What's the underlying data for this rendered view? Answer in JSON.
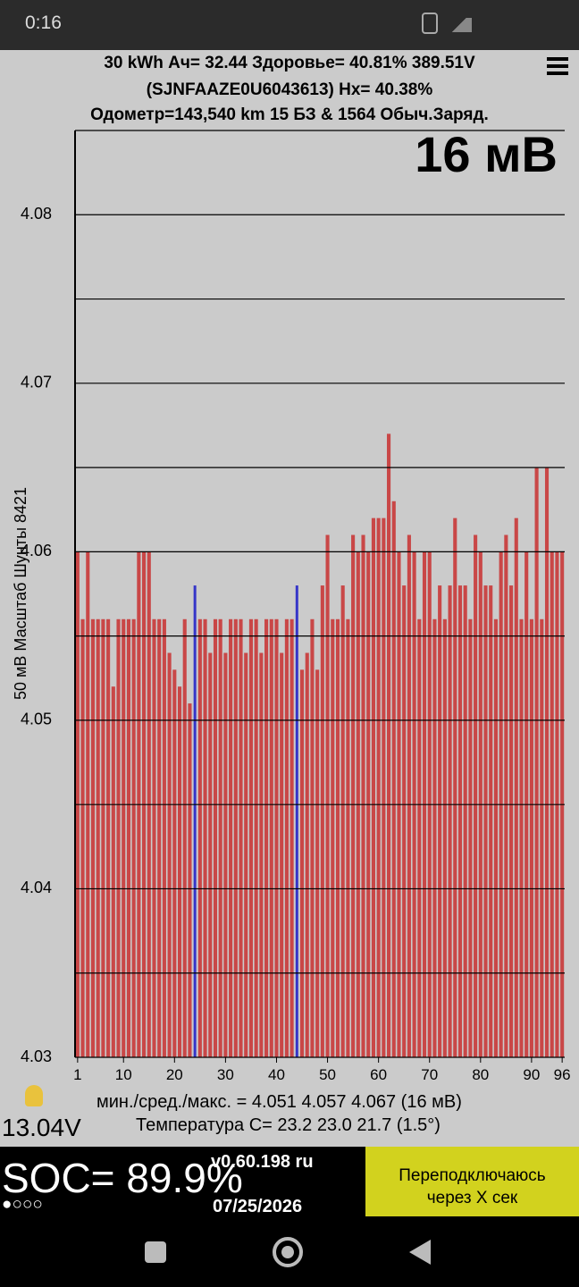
{
  "status_bar": {
    "time": "0:16"
  },
  "header": {
    "line1": "30 kWh  Ач= 32.44  Здоровье= 40.81%  389.51V",
    "line2": "(SJNFAAZE0U6043613)  Hx= 40.38%",
    "line3": "Одометр=143,540 km 15 БЗ & 1564 Обыч.Заряд."
  },
  "chart_data": {
    "type": "bar",
    "scale_label": "16 мВ",
    "y_label": "50 мВ Масштаб  Шунты 8421",
    "x": [
      1,
      2,
      3,
      4,
      5,
      6,
      7,
      8,
      9,
      10,
      11,
      12,
      13,
      14,
      15,
      16,
      17,
      18,
      19,
      20,
      21,
      22,
      23,
      24,
      25,
      26,
      27,
      28,
      29,
      30,
      31,
      32,
      33,
      34,
      35,
      36,
      37,
      38,
      39,
      40,
      41,
      42,
      43,
      44,
      45,
      46,
      47,
      48,
      49,
      50,
      51,
      52,
      53,
      54,
      55,
      56,
      57,
      58,
      59,
      60,
      61,
      62,
      63,
      64,
      65,
      66,
      67,
      68,
      69,
      70,
      71,
      72,
      73,
      74,
      75,
      76,
      77,
      78,
      79,
      80,
      81,
      82,
      83,
      84,
      85,
      86,
      87,
      88,
      89,
      90,
      91,
      92,
      93,
      94,
      95,
      96
    ],
    "values": [
      4.06,
      4.056,
      4.06,
      4.056,
      4.056,
      4.056,
      4.056,
      4.052,
      4.056,
      4.056,
      4.056,
      4.056,
      4.06,
      4.06,
      4.06,
      4.056,
      4.056,
      4.056,
      4.054,
      4.053,
      4.052,
      4.056,
      4.051,
      4.058,
      4.056,
      4.056,
      4.054,
      4.056,
      4.056,
      4.054,
      4.056,
      4.056,
      4.056,
      4.054,
      4.056,
      4.056,
      4.054,
      4.056,
      4.056,
      4.056,
      4.054,
      4.056,
      4.056,
      4.058,
      4.053,
      4.054,
      4.056,
      4.053,
      4.058,
      4.061,
      4.056,
      4.056,
      4.058,
      4.056,
      4.061,
      4.06,
      4.061,
      4.06,
      4.062,
      4.062,
      4.062,
      4.067,
      4.063,
      4.06,
      4.058,
      4.061,
      4.06,
      4.056,
      4.06,
      4.06,
      4.056,
      4.058,
      4.056,
      4.058,
      4.062,
      4.058,
      4.058,
      4.056,
      4.061,
      4.06,
      4.058,
      4.058,
      4.056,
      4.06,
      4.061,
      4.058,
      4.062,
      4.056,
      4.06,
      4.056,
      4.065,
      4.056,
      4.065,
      4.06,
      4.06,
      4.06
    ],
    "color": "#c94747",
    "highlight_color": "#3535c8",
    "highlight_indices": [
      23,
      43
    ],
    "xlim": [
      0.5,
      96.5
    ],
    "xticks": [
      1,
      10,
      20,
      30,
      40,
      50,
      60,
      70,
      80,
      90,
      96
    ],
    "ylim": [
      4.03,
      4.085
    ],
    "yticks": [
      4.03,
      4.04,
      4.05,
      4.06,
      4.07,
      4.08
    ],
    "minor_yticks": [
      4.035,
      4.045,
      4.055,
      4.065,
      4.075,
      4.085
    ],
    "grid": true
  },
  "footer": {
    "stats": "мин./сред./макс. = 4.051 4.057 4.067  (16 мВ)",
    "temperature": "Температура C= 23.2  23.0  21.7  (1.5°)",
    "aux_voltage": "13.04V",
    "soc": "SOC= 89.9%",
    "indicator": "●○○○",
    "version": "v0.60.198 ru",
    "date": "07/25/2026",
    "button": "Переподключаюсь через X сек"
  }
}
